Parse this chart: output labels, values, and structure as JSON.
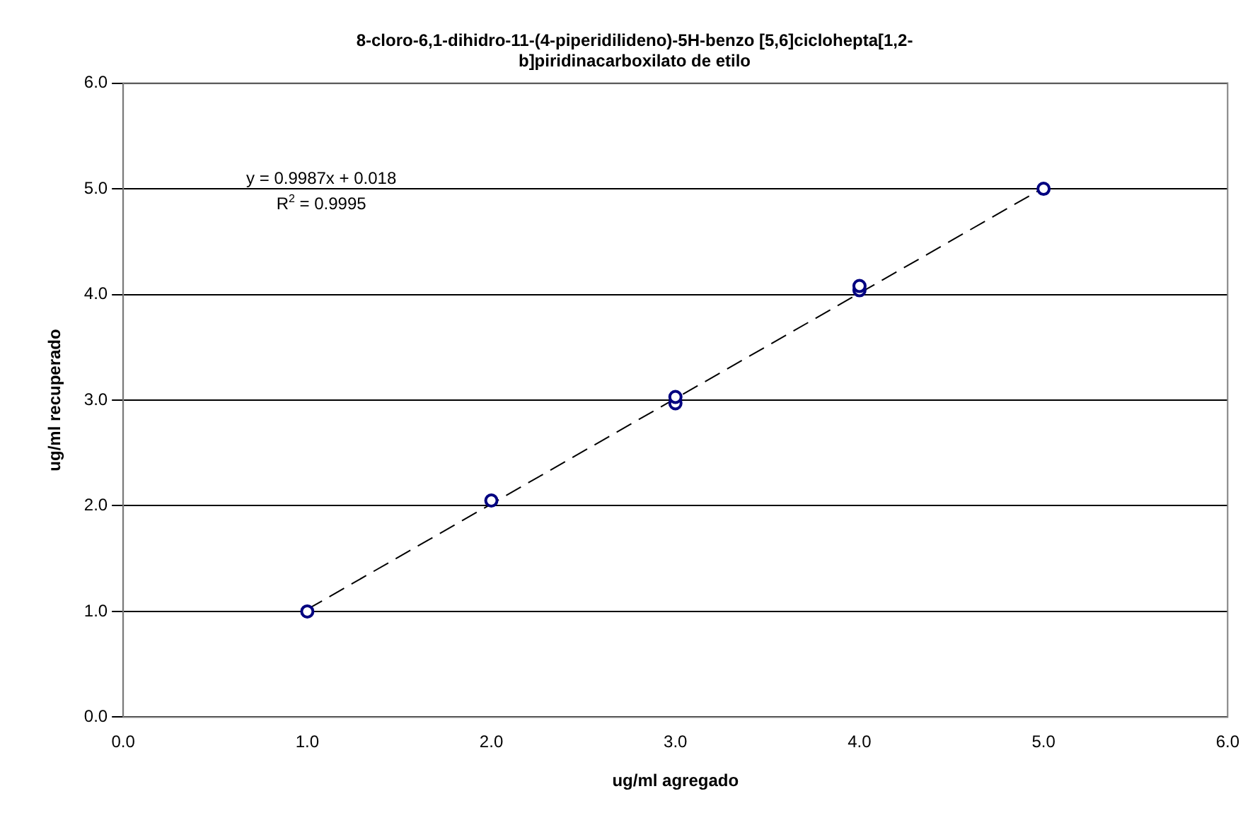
{
  "chart_data": {
    "type": "scatter",
    "title": "8-cloro-6,1-dihidro-11-(4-piperidilideno)-5H-benzo [5,6]ciclohepta[1,2-b]piridinacarboxilato de etilo",
    "xlabel": "ug/ml agregado",
    "ylabel": "ug/ml recuperado",
    "x": [
      1,
      2,
      3,
      3,
      4,
      4,
      5
    ],
    "series": [
      {
        "type": "scatter",
        "color": "#000080",
        "values": [
          1.0,
          2.05,
          2.97,
          3.03,
          4.04,
          4.08,
          5.0
        ],
        "marker": "circle"
      },
      {
        "type": "line",
        "color": "#000000",
        "x": [
          1,
          5
        ],
        "values": [
          1.02,
          5.01
        ],
        "line_style": "dashed",
        "marker": "none"
      }
    ],
    "annotations": [
      "y = 0.9987x + 0.018",
      "R$^{2}$ = 0.9995"
    ],
    "xlim": [
      0,
      6
    ],
    "ylim": [
      0,
      6
    ],
    "xticks": [
      {
        "value": 0,
        "label": "0.0"
      },
      {
        "value": 1,
        "label": "1.0"
      },
      {
        "value": 2,
        "label": "2.0"
      },
      {
        "value": 3,
        "label": "3.0"
      },
      {
        "value": 4,
        "label": "4.0"
      },
      {
        "value": 5,
        "label": "5.0"
      },
      {
        "value": 6,
        "label": "6.0"
      }
    ],
    "yticks": [
      {
        "value": 0,
        "label": "0.0"
      },
      {
        "value": 1,
        "label": "1.0"
      },
      {
        "value": 2,
        "label": "2.0"
      },
      {
        "value": 3,
        "label": "3.0"
      },
      {
        "value": 4,
        "label": "4.0"
      },
      {
        "value": 5,
        "label": "5.0"
      },
      {
        "value": 6,
        "label": "6.0"
      }
    ],
    "grid": "y",
    "legend": false
  }
}
